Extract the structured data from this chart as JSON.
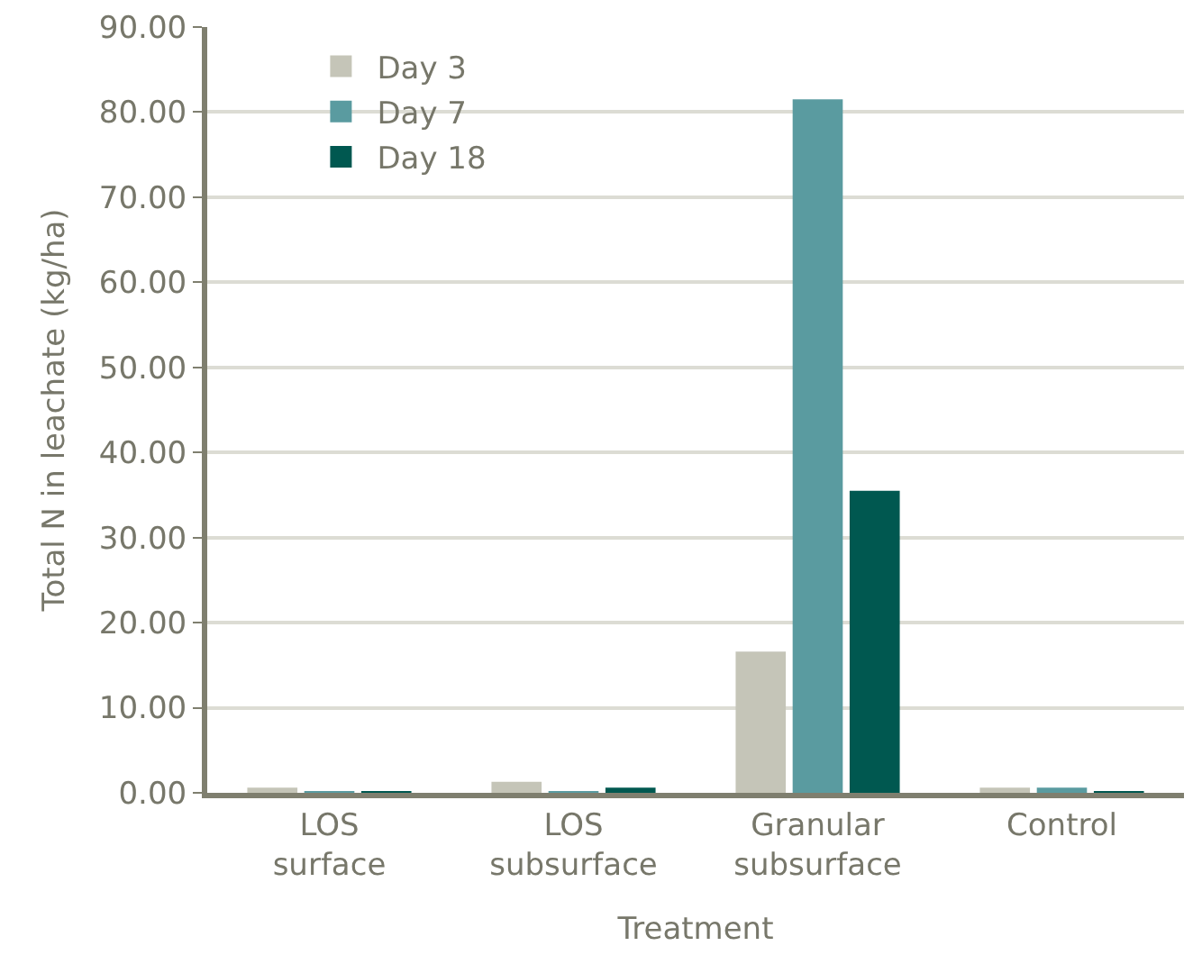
{
  "chart_data": {
    "type": "bar",
    "xlabel": "Treatment",
    "ylabel": "Total N in leachate (kg/ha)",
    "categories": [
      "LOS\nsurface",
      "LOS\nsubsurface",
      "Granular\nsubsurface",
      "Control"
    ],
    "series": [
      {
        "name": "Day 3",
        "color": "#c5c5b8",
        "values": [
          0.6,
          1.3,
          16.6,
          0.6
        ]
      },
      {
        "name": "Day 7",
        "color": "#5a9ba0",
        "values": [
          0.2,
          0.2,
          81.5,
          0.6
        ]
      },
      {
        "name": "Day 18",
        "color": "#005850",
        "values": [
          0.2,
          0.6,
          35.5,
          0.2
        ]
      }
    ],
    "ylim": [
      0,
      90
    ],
    "yticks": [
      {
        "value": 0,
        "label": "0.00"
      },
      {
        "value": 10,
        "label": "10.00"
      },
      {
        "value": 20,
        "label": "20.00"
      },
      {
        "value": 30,
        "label": "30.00"
      },
      {
        "value": 40,
        "label": "40.00"
      },
      {
        "value": 50,
        "label": "50.00"
      },
      {
        "value": 60,
        "label": "60.00"
      },
      {
        "value": 70,
        "label": "70.00"
      },
      {
        "value": 80,
        "label": "80.00"
      },
      {
        "value": 90,
        "label": "90.00"
      }
    ],
    "grid": "y",
    "legend": "top left"
  }
}
